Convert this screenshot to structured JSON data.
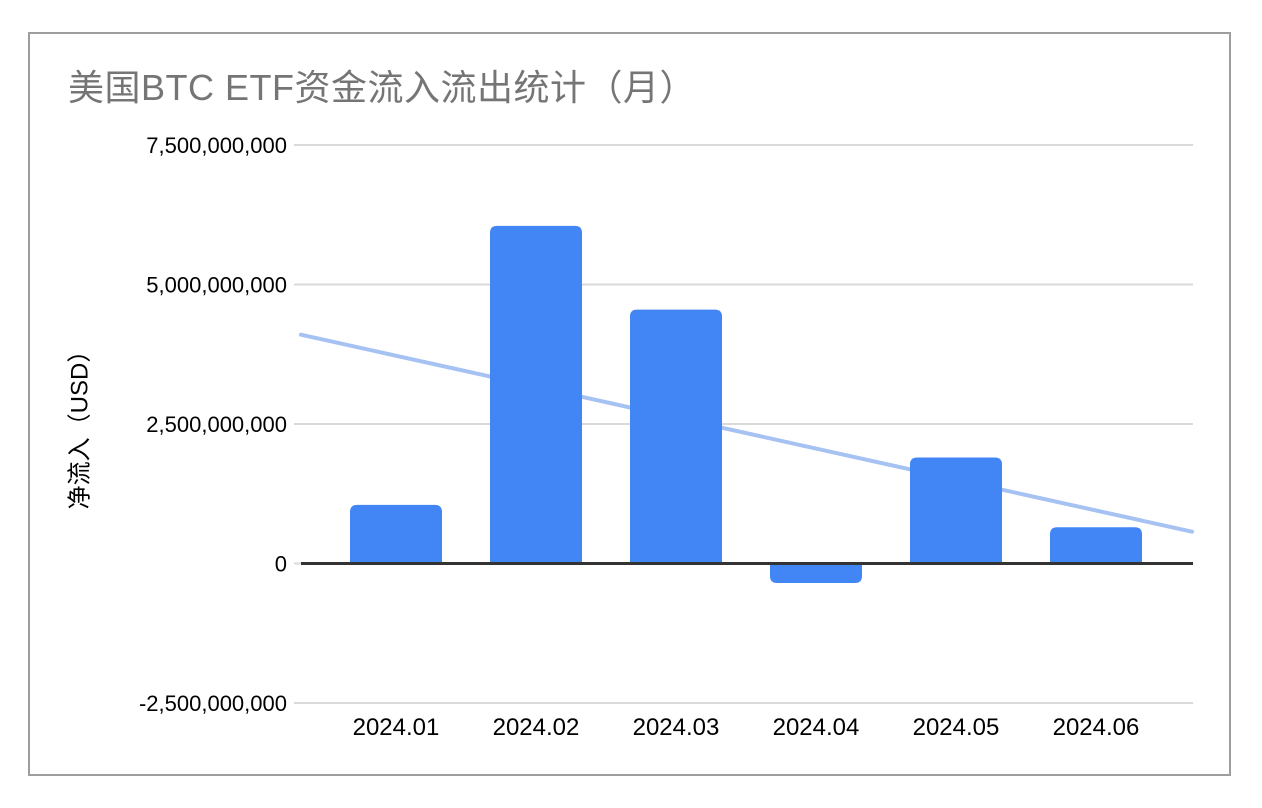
{
  "chart_data": {
    "type": "bar",
    "title": "美国BTC ETF资金流入流出统计（月）",
    "xlabel": "",
    "ylabel": "净流入（USD）",
    "categories": [
      "2024.01",
      "2024.02",
      "2024.03",
      "2024.04",
      "2024.05",
      "2024.06"
    ],
    "values": [
      1050000000,
      6050000000,
      4550000000,
      -350000000,
      1900000000,
      650000000
    ],
    "trendline": {
      "type": "linear",
      "start_value": 4100000000,
      "end_value": 570000000
    },
    "ylim": [
      -2500000000,
      7500000000
    ],
    "ytick_step": 2500000000,
    "ytick_labels": [
      "7,500,000,000",
      "5,000,000,000",
      "2,500,000,000",
      "0",
      "-2,500,000,000"
    ],
    "grid": true,
    "legend": false,
    "colors": {
      "bar": "#4285F4",
      "trendline": "#A5C2F2",
      "grid": "#DADADA",
      "zero_axis": "#333333",
      "title": "#757575",
      "axis_text": "#000000",
      "card_border": "#9E9E9E"
    }
  }
}
